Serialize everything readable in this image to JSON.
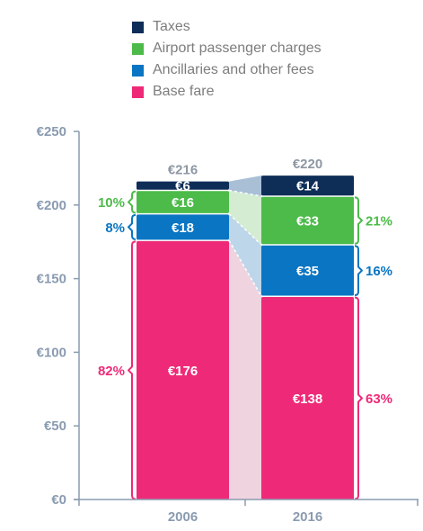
{
  "colors": {
    "taxes": "#0e2e58",
    "airport": "#4dbb4a",
    "ancillaries": "#0a75c2",
    "base": "#ee2a78",
    "axis": "#8a9bb0",
    "total": "#8d97a3"
  },
  "legend": [
    {
      "label": "Taxes",
      "color": "#0e2e58"
    },
    {
      "label": "Airport passenger charges",
      "color": "#4dbb4a"
    },
    {
      "label": "Ancillaries and other fees",
      "color": "#0a75c2"
    },
    {
      "label": "Base fare",
      "color": "#ee2a78"
    }
  ],
  "chart_data": {
    "type": "bar",
    "stacked": true,
    "categories": [
      "2006",
      "2016"
    ],
    "ylim": [
      0,
      250
    ],
    "yticks": [
      0,
      50,
      100,
      150,
      200,
      250
    ],
    "ytick_labels": [
      "€0",
      "€50",
      "€100",
      "€150",
      "€200",
      "€250"
    ],
    "series": [
      {
        "name": "Base fare",
        "color": "#ee2a78",
        "values": [
          176,
          138
        ],
        "value_labels": [
          "€176",
          "€138"
        ],
        "shares": [
          "82%",
          "63%"
        ]
      },
      {
        "name": "Ancillaries and other fees",
        "color": "#0a75c2",
        "values": [
          18,
          35
        ],
        "value_labels": [
          "€18",
          "€35"
        ],
        "shares": [
          "8%",
          "16%"
        ]
      },
      {
        "name": "Airport passenger charges",
        "color": "#4dbb4a",
        "values": [
          16,
          33
        ],
        "value_labels": [
          "€16",
          "€33"
        ],
        "shares": [
          "10%",
          "21%"
        ]
      },
      {
        "name": "Taxes",
        "color": "#0e2e58",
        "values": [
          6,
          14
        ],
        "value_labels": [
          "€6",
          "€14"
        ],
        "shares": [
          "",
          ""
        ]
      }
    ],
    "totals": [
      216,
      220
    ],
    "total_labels": [
      "€216",
      "€220"
    ]
  }
}
